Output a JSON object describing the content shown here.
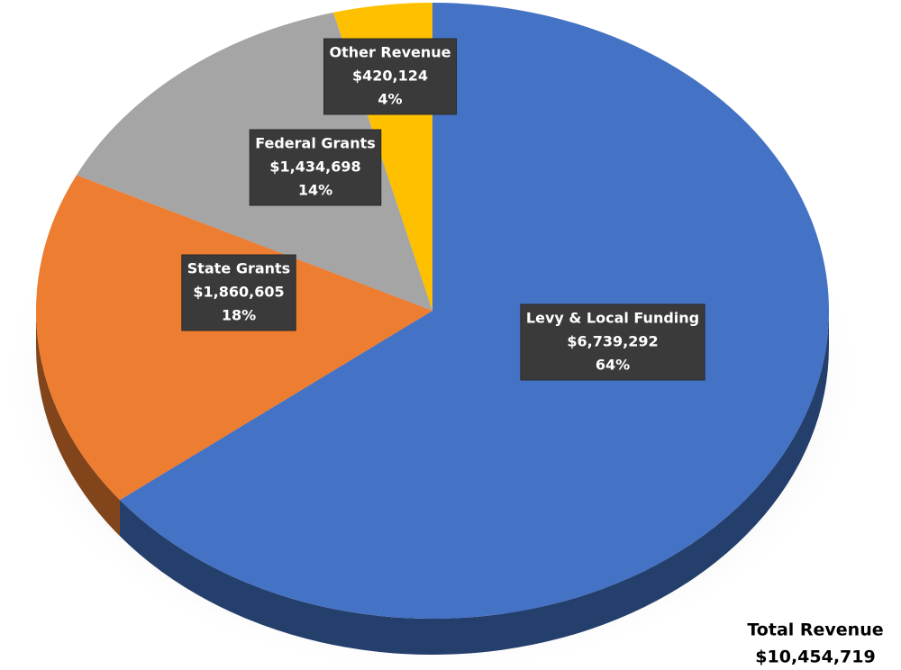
{
  "chart_data": {
    "type": "pie",
    "categories": [
      "Levy & Local Funding",
      "State Grants",
      "Federal Grants",
      "Other Revenue"
    ],
    "values": [
      6739292,
      1860605,
      1434698,
      420124
    ],
    "value_labels": [
      "$6,739,292",
      "$1,860,605",
      "$1,434,698",
      "$420,124"
    ],
    "percent_labels": [
      "64%",
      "18%",
      "14%",
      "4%"
    ],
    "colors": [
      "#4472c4",
      "#ed7d31",
      "#a5a5a5",
      "#ffc000"
    ],
    "total": {
      "label": "Total Revenue",
      "value": 10454719,
      "value_label": "$10,454,719"
    }
  }
}
